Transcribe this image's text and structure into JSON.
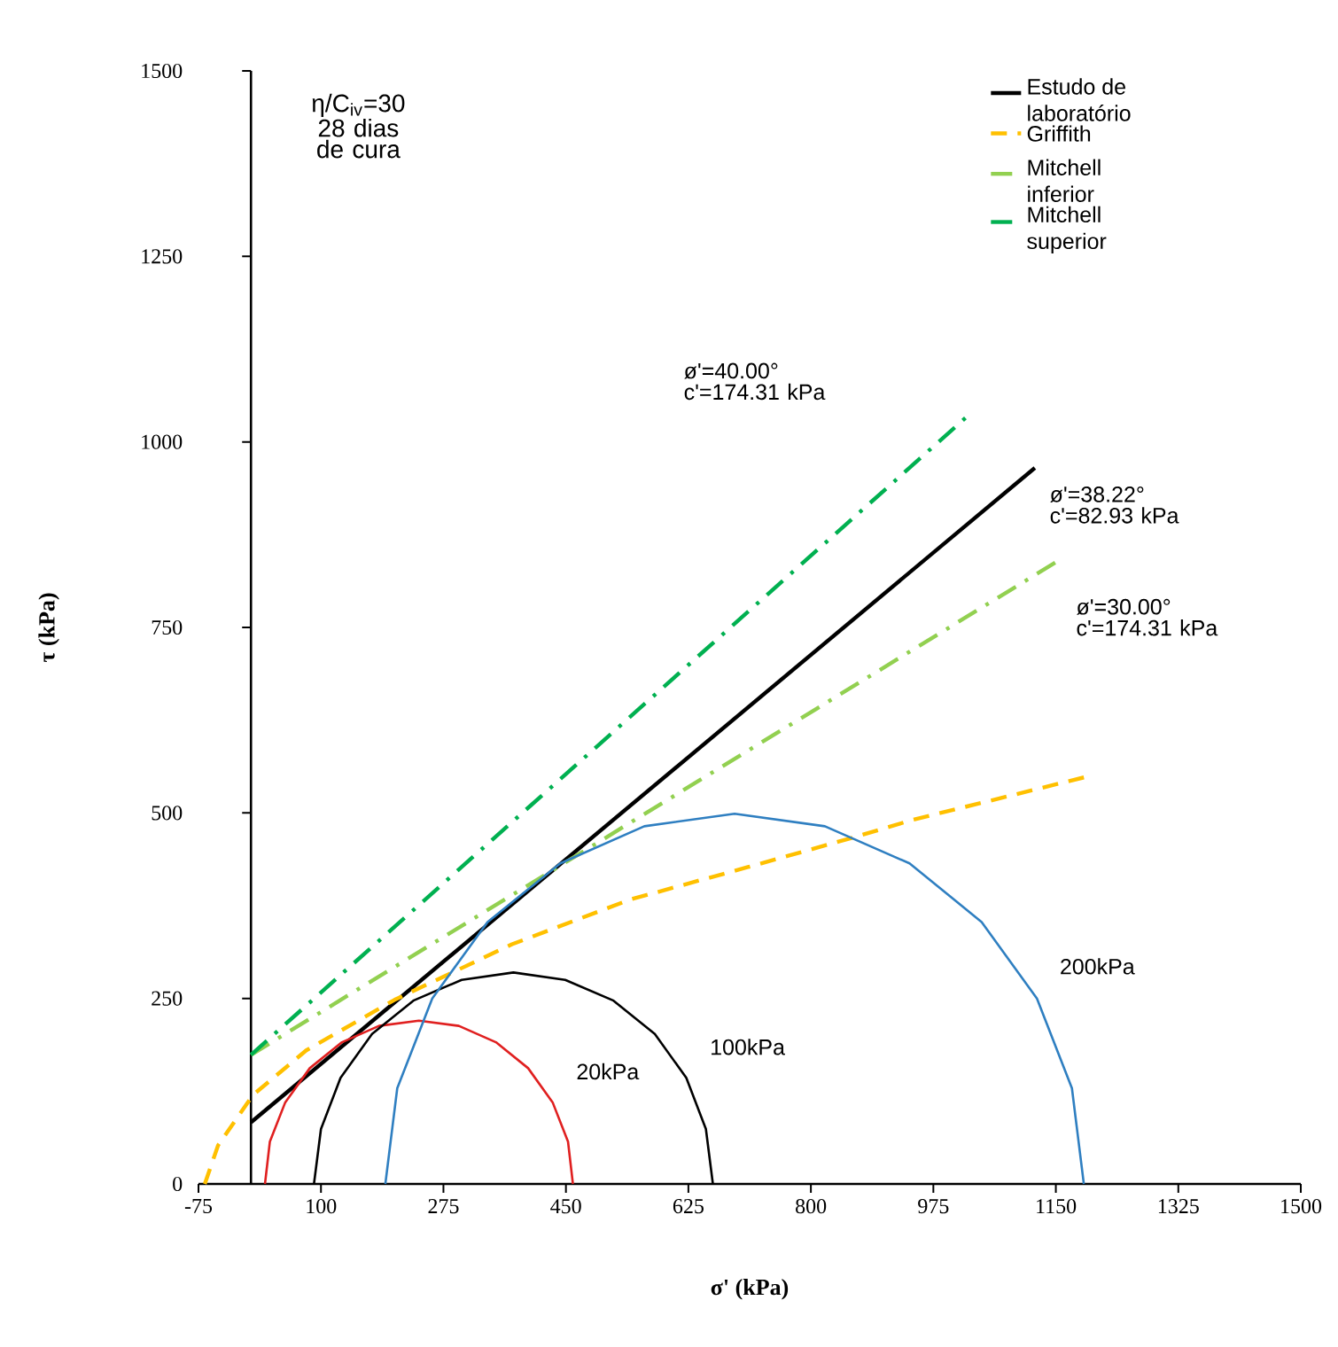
{
  "chart_data": {
    "type": "line",
    "xlabel": "σ' (kPa)",
    "ylabel": "τ (kPa)",
    "xlim": [
      -75,
      1500
    ],
    "ylim": [
      0,
      1500
    ],
    "xticks": [
      -75,
      100,
      275,
      450,
      625,
      800,
      975,
      1150,
      1325,
      1500
    ],
    "yticks": [
      0,
      250,
      500,
      750,
      1000,
      1250,
      1500
    ],
    "legend": "top right",
    "marker": "none",
    "series": [
      {
        "name": "Estudo de laboratório",
        "color": "#000000",
        "line_style": "solid",
        "x": [
          0,
          1120
        ],
        "values": [
          83,
          965
        ]
      },
      {
        "name": "Griffith",
        "color": "#ffc000",
        "line_style": "dashed",
        "x": [
          -66,
          -47,
          3,
          79,
          205,
          373,
          541,
          710,
          861,
          943,
          1195
        ],
        "values": [
          0,
          52,
          120,
          180,
          248,
          323,
          383,
          427,
          467,
          490,
          549
        ]
      },
      {
        "name": "Mitchell inferior",
        "color": "#92d050",
        "line_style": "dashdot",
        "x": [
          0,
          1159
        ],
        "values": [
          174,
          843
        ]
      },
      {
        "name": "Mitchell superior",
        "color": "#00b050",
        "line_style": "dashdot",
        "x": [
          0,
          1030
        ],
        "values": [
          174,
          1040
        ]
      },
      {
        "name": "20kPa",
        "color": "#e02020",
        "line_style": "solid",
        "x": [
          20,
          27,
          49,
          84,
          130,
          183,
          240,
          297,
          350,
          396,
          431,
          453,
          460
        ],
        "values": [
          0,
          57,
          110,
          156,
          191,
          213,
          220,
          213,
          191,
          156,
          110,
          57,
          0
        ]
      },
      {
        "name": "100kPa",
        "color": "#000000",
        "line_style": "solid",
        "x": [
          90,
          100,
          128,
          173,
          232,
          301,
          375,
          449,
          518,
          577,
          622,
          650,
          660
        ],
        "values": [
          0,
          74,
          143,
          202,
          247,
          275,
          285,
          275,
          247,
          202,
          143,
          74,
          0
        ]
      },
      {
        "name": "200kPa",
        "color": "#2f7fc1",
        "line_style": "solid",
        "x": [
          192,
          209,
          259,
          338,
          442,
          562,
          691,
          820,
          941,
          1044,
          1123,
          1173,
          1190
        ],
        "values": [
          0,
          129,
          250,
          353,
          432,
          482,
          499,
          482,
          432,
          353,
          250,
          129,
          0
        ]
      }
    ],
    "annotations": [
      "η/C$_{iv}$=30 28 dias de cura",
      "ø'=40.00° c'=174.31 kPa",
      "ø'=38.22° c'=82.93 kPa",
      "ø'=30.00° c'=174.31 kPa"
    ]
  }
}
